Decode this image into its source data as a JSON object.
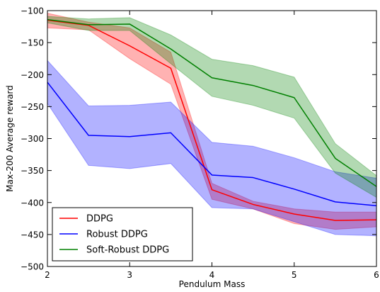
{
  "chart_data": {
    "type": "line",
    "title": "",
    "xlabel": "Pendulum Mass",
    "ylabel": "Max-200 Average reward",
    "xlim": [
      2,
      6
    ],
    "ylim": [
      -500,
      -100
    ],
    "x_ticks": [
      "2",
      "3",
      "4",
      "5",
      "6"
    ],
    "y_ticks": [
      "-500",
      "-450",
      "-400",
      "-350",
      "-300",
      "-250",
      "-200",
      "-150",
      "-100"
    ],
    "x_tick_values": [
      2,
      3,
      4,
      5,
      6
    ],
    "y_tick_values": [
      -500,
      -450,
      -400,
      -350,
      -300,
      -250,
      -200,
      -150,
      -100
    ],
    "grid": false,
    "legend_position": "bottom-left",
    "x": [
      2,
      2.5,
      3,
      3.5,
      4,
      4.5,
      5,
      5.5,
      6
    ],
    "series": [
      {
        "name": "DDPG",
        "color": "#ff0000",
        "values": [
          -115,
          -123,
          -155,
          -190,
          -380,
          -403,
          -418,
          -428,
          -427
        ],
        "upper": [
          -104,
          -118,
          -127,
          -165,
          -370,
          -398,
          -410,
          -415,
          -415
        ],
        "lower": [
          -127,
          -130,
          -175,
          -215,
          -395,
          -410,
          -433,
          -442,
          -438
        ]
      },
      {
        "name": "Robust DDPG",
        "color": "#0000ff",
        "values": [
          -212,
          -295,
          -297,
          -291,
          -357,
          -361,
          -379,
          -399,
          -405
        ],
        "upper": [
          -178,
          -249,
          -248,
          -243,
          -306,
          -312,
          -330,
          -352,
          -362
        ],
        "lower": [
          -245,
          -342,
          -347,
          -339,
          -408,
          -410,
          -430,
          -450,
          -452
        ]
      },
      {
        "name": "Soft-Robust DDPG",
        "color": "#008000",
        "values": [
          -114,
          -122,
          -121,
          -160,
          -205,
          -217,
          -236,
          -331,
          -375
        ],
        "upper": [
          -109,
          -113,
          -111,
          -138,
          -176,
          -186,
          -204,
          -308,
          -358
        ],
        "lower": [
          -119,
          -131,
          -131,
          -183,
          -234,
          -248,
          -268,
          -354,
          -392
        ]
      }
    ]
  }
}
